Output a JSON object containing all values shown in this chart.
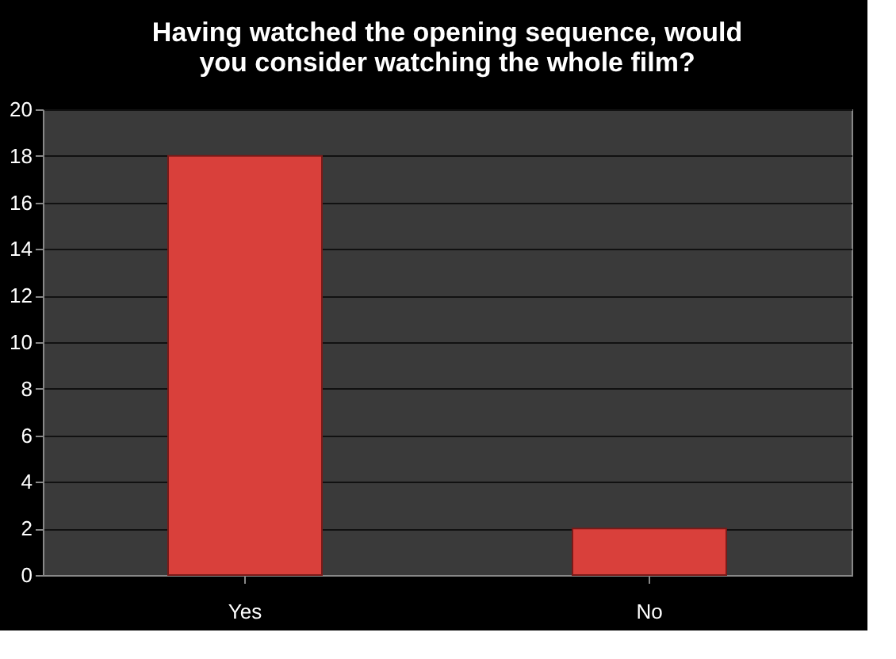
{
  "chart_data": {
    "type": "bar",
    "title": "Having watched the opening sequence, would you consider watching the whole film?",
    "categories": [
      "Yes",
      "No"
    ],
    "values": [
      18,
      2
    ],
    "color": "#d9403b",
    "ylim": [
      0,
      20
    ],
    "yticks": [
      0,
      2,
      4,
      6,
      8,
      10,
      12,
      14,
      16,
      18,
      20
    ],
    "grid": "y"
  }
}
